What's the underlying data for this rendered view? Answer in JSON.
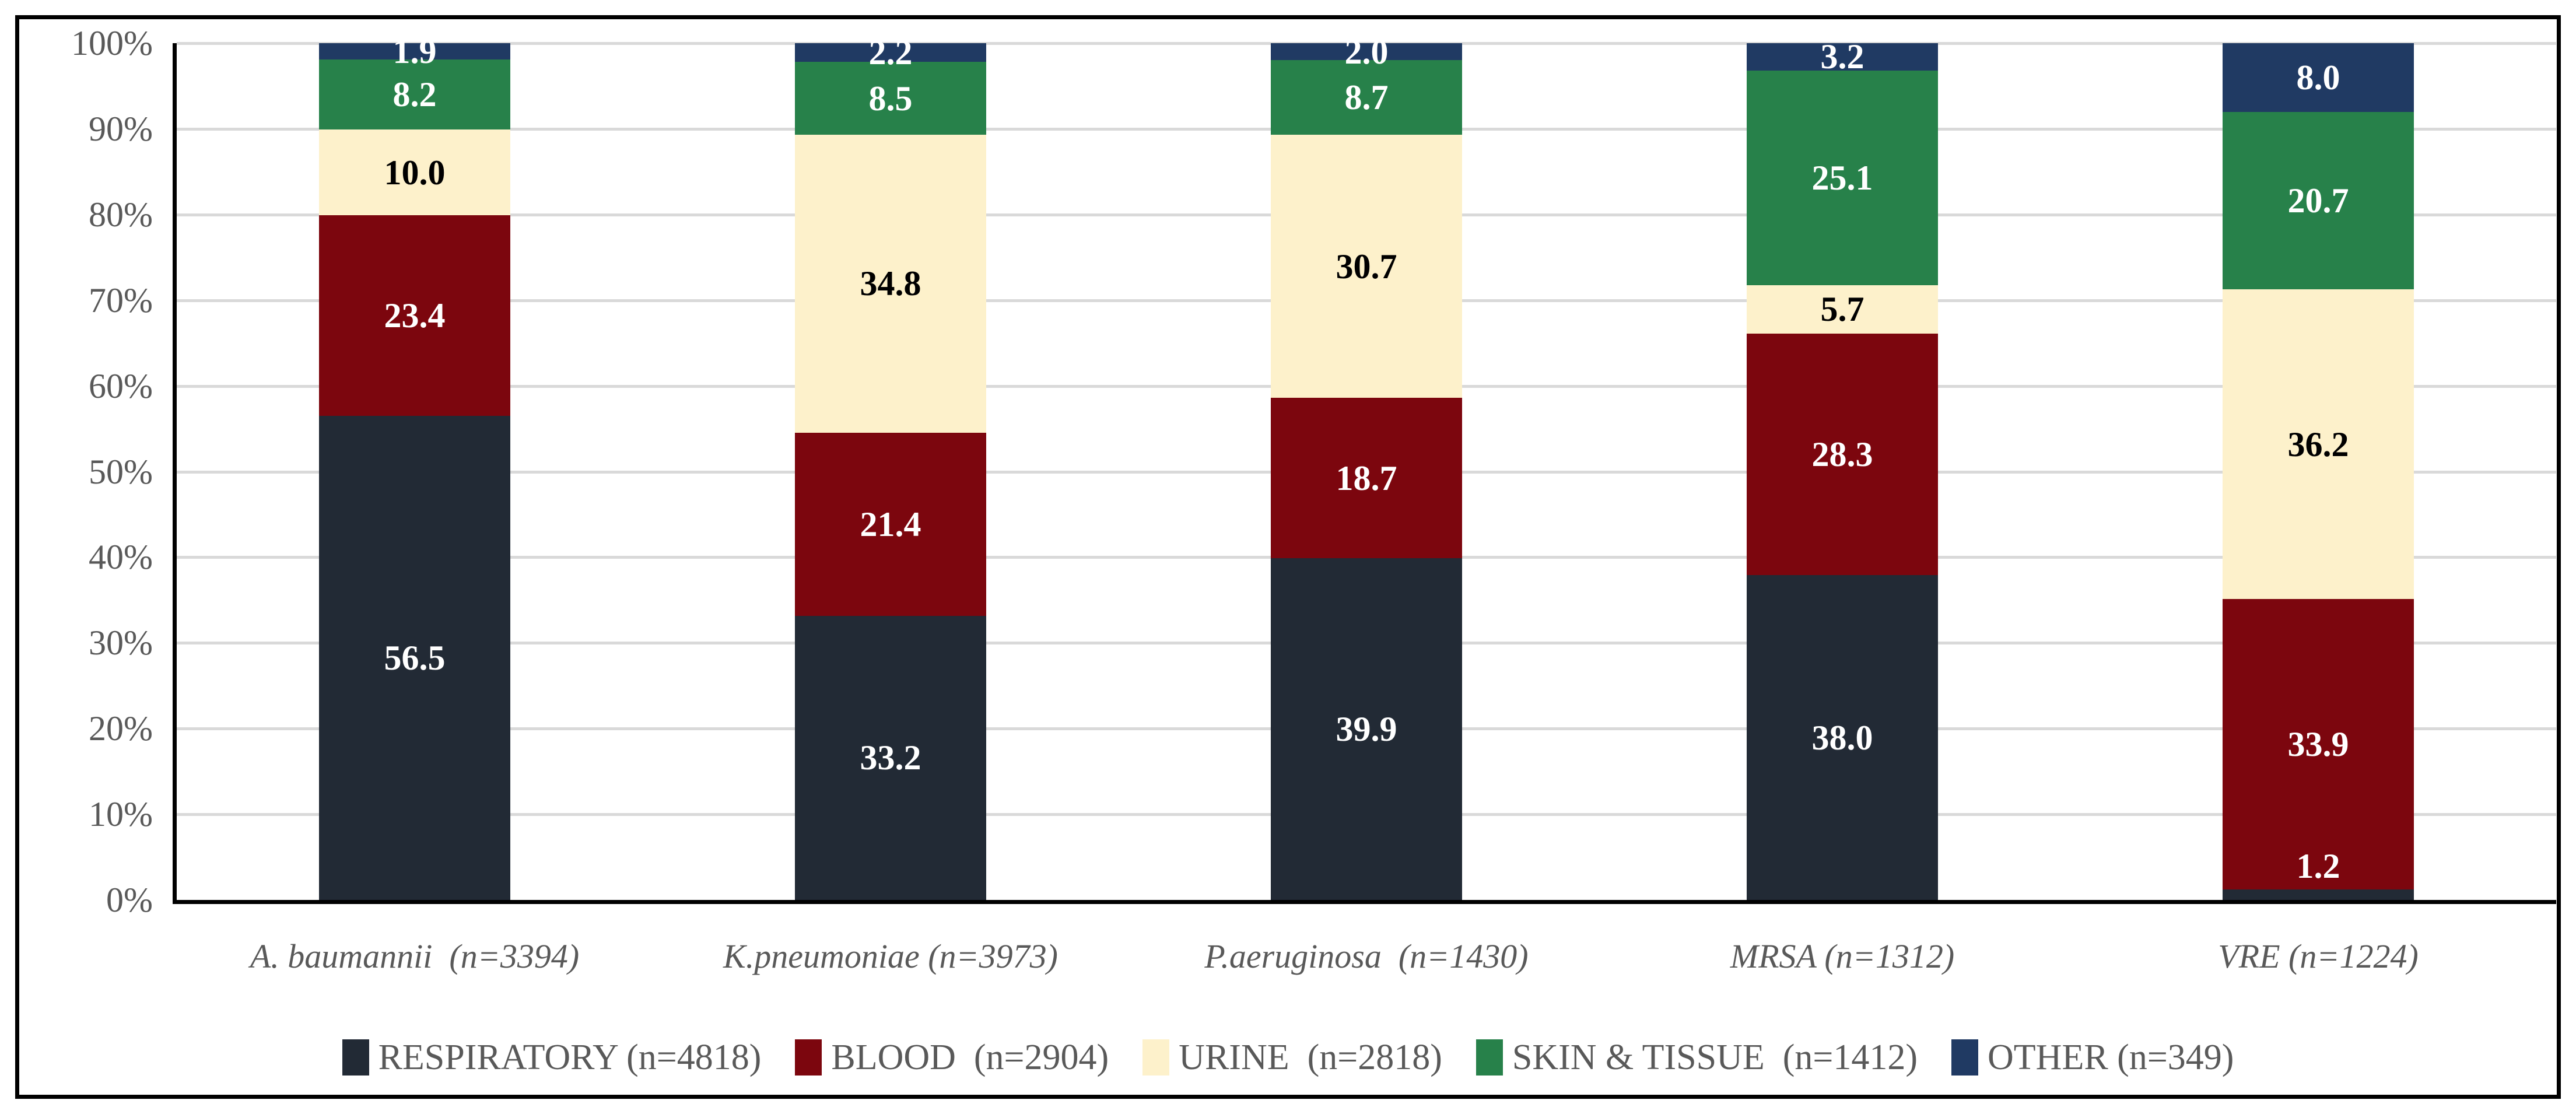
{
  "figure": {
    "background": "#FFFFFF",
    "border_color": "#000000",
    "gridline_color": "#D9D9D9",
    "axis_line_color": "#000000",
    "tick_text_color": "#595959",
    "category_text_color": "#595959",
    "legend_text_color": "#595959"
  },
  "chart_data": {
    "type": "bar",
    "subtype": "stacked-100",
    "title": "",
    "xlabel": "",
    "ylabel": "",
    "ylim": [
      0,
      100
    ],
    "grid": true,
    "legend_position": "bottom",
    "y_ticks": [
      "100%",
      "90%",
      "80%",
      "70%",
      "60%",
      "50%",
      "40%",
      "30%",
      "20%",
      "10%",
      "0%"
    ],
    "categories": [
      "A. baumannii  (n=3394)",
      "K.pneumoniae (n=3973)",
      "P.aeruginosa  (n=1430)",
      "MRSA (n=1312)",
      "VRE (n=1224)"
    ],
    "series": [
      {
        "name": "RESPIRATORY (n=4818)",
        "color": "#222A35",
        "label_color": "#FFFFFF",
        "values": [
          56.5,
          33.2,
          39.9,
          38.0,
          1.2
        ]
      },
      {
        "name": "BLOOD  (n=2904)",
        "color": "#7C060E",
        "label_color": "#FFFFFF",
        "values": [
          23.4,
          21.4,
          18.7,
          28.3,
          33.9
        ]
      },
      {
        "name": "URINE  (n=2818)",
        "color": "#FDF1CB",
        "label_color": "#000000",
        "values": [
          10.0,
          34.8,
          30.7,
          5.7,
          36.2
        ]
      },
      {
        "name": "SKIN & TISSUE  (n=1412)",
        "color": "#27814A",
        "label_color": "#FFFFFF",
        "values": [
          8.2,
          8.5,
          8.7,
          25.1,
          20.7
        ]
      },
      {
        "name": "OTHER (n=349)",
        "color": "#203A63",
        "label_color": "#FFFFFF",
        "values": [
          1.9,
          2.2,
          2.0,
          3.2,
          8.0
        ]
      }
    ]
  }
}
